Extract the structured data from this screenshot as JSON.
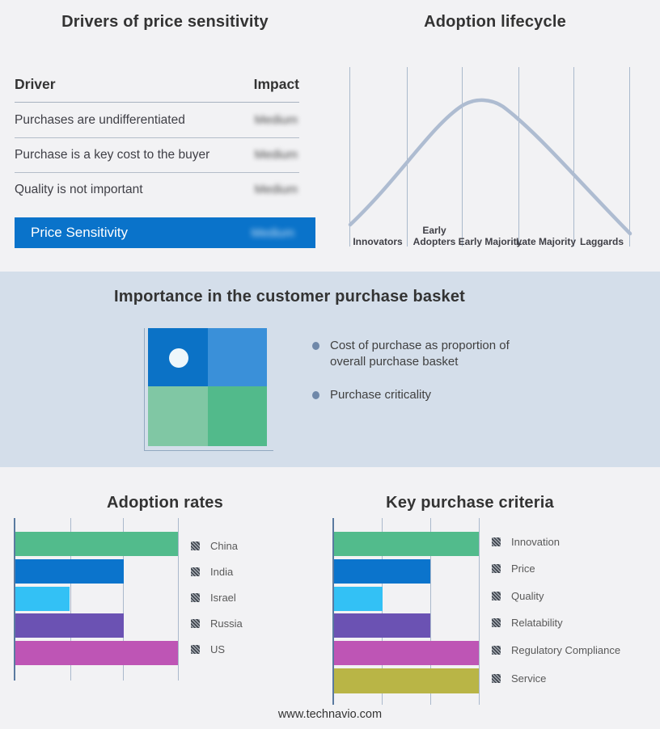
{
  "colors": {
    "background": "#f2f2f4",
    "band": "#d4deea",
    "accent_blue": "#0a73ca",
    "curve": "#aebcd1",
    "gridline": "#aab9cc",
    "axis": "#5a7aa0",
    "green": "#52bb8c",
    "blue": "#0b74cc",
    "cyan": "#33c1f5",
    "purple": "#6b52b3",
    "magenta": "#be55b5",
    "olive": "#b9b546",
    "quad_top_left": "#0b72c6",
    "quad_top_right": "#3a90d9",
    "quad_bottom_left": "#80c7a4",
    "quad_bottom_right": "#52ba8b"
  },
  "drivers": {
    "title": "Drivers of price sensitivity",
    "header": {
      "driver": "Driver",
      "impact": "Impact"
    },
    "rows": [
      {
        "driver": "Purchases are undifferentiated",
        "impact": "Medium"
      },
      {
        "driver": "Purchase is a key cost to the buyer",
        "impact": "Medium"
      },
      {
        "driver": "Quality is not important",
        "impact": "Medium"
      }
    ],
    "highlight_row": {
      "driver": "Price Sensitivity",
      "impact": "Medium"
    }
  },
  "lifecycle": {
    "title": "Adoption lifecycle",
    "stages": [
      {
        "label": "Innovators"
      },
      {
        "label": "Early Adopters"
      },
      {
        "label": "Early Majority"
      },
      {
        "label": "Late Majority"
      },
      {
        "label": "Laggards"
      }
    ]
  },
  "basket": {
    "title": "Importance in the customer purchase basket",
    "bullets": [
      {
        "text": "Cost of purchase as proportion of overall purchase basket"
      },
      {
        "text": "Purchase criticality"
      }
    ]
  },
  "adoption_rates": {
    "title": "Adoption rates",
    "bars": [
      {
        "label": "China",
        "value": 3,
        "color": "#52bb8c"
      },
      {
        "label": "India",
        "value": 2,
        "color": "#0b74cc"
      },
      {
        "label": "Israel",
        "value": 1,
        "color": "#33c1f5"
      },
      {
        "label": "Russia",
        "value": 2,
        "color": "#6b52b3"
      },
      {
        "label": "US",
        "value": 3,
        "color": "#be55b5"
      }
    ]
  },
  "purchase_criteria": {
    "title": "Key purchase criteria",
    "bars": [
      {
        "label": "Innovation",
        "value": 3,
        "color": "#52bb8c"
      },
      {
        "label": "Price",
        "value": 2,
        "color": "#0b74cc"
      },
      {
        "label": "Quality",
        "value": 1,
        "color": "#33c1f5"
      },
      {
        "label": "Relatability",
        "value": 2,
        "color": "#6b52b3"
      },
      {
        "label": "Regulatory Compliance",
        "value": 3,
        "color": "#be55b5"
      },
      {
        "label": "Service",
        "value": 3,
        "color": "#b9b546"
      }
    ]
  },
  "footer": "www.technavio.com",
  "chart_data": [
    {
      "type": "table",
      "title": "Drivers of price sensitivity",
      "columns": [
        "Driver",
        "Impact"
      ],
      "rows": [
        [
          "Purchases are undifferentiated",
          "Medium"
        ],
        [
          "Purchase is a key cost to the buyer",
          "Medium"
        ],
        [
          "Quality is not important",
          "Medium"
        ],
        [
          "Price Sensitivity",
          "Medium"
        ]
      ],
      "notes": "Impact values are blurred in the source image; last row highlighted blue"
    },
    {
      "type": "line",
      "title": "Adoption lifecycle",
      "categories": [
        "Innovators",
        "Early Adopters",
        "Early Majority",
        "Late Majority",
        "Laggards"
      ],
      "values": [
        0.1,
        0.55,
        1.0,
        0.62,
        0.12
      ],
      "xlabel": "",
      "ylabel": "",
      "grid": "vertical category separators only, no numeric axes",
      "notes": "Bell-shaped adoption curve peaking in Early Majority"
    },
    {
      "type": "bar",
      "orientation": "horizontal",
      "title": "Adoption rates",
      "categories": [
        "China",
        "India",
        "Israel",
        "Russia",
        "US"
      ],
      "values": [
        3,
        2,
        1,
        2,
        3
      ],
      "xlim": [
        0,
        3
      ],
      "notes": "No numeric axis labels; values expressed in gridline units",
      "legend_position": "right"
    },
    {
      "type": "bar",
      "orientation": "horizontal",
      "title": "Key purchase criteria",
      "categories": [
        "Innovation",
        "Price",
        "Quality",
        "Relatability",
        "Regulatory Compliance",
        "Service"
      ],
      "values": [
        3,
        2,
        1,
        2,
        3,
        3
      ],
      "xlim": [
        0,
        3
      ],
      "notes": "No numeric axis labels; values expressed in gridline units",
      "legend_position": "right"
    }
  ]
}
